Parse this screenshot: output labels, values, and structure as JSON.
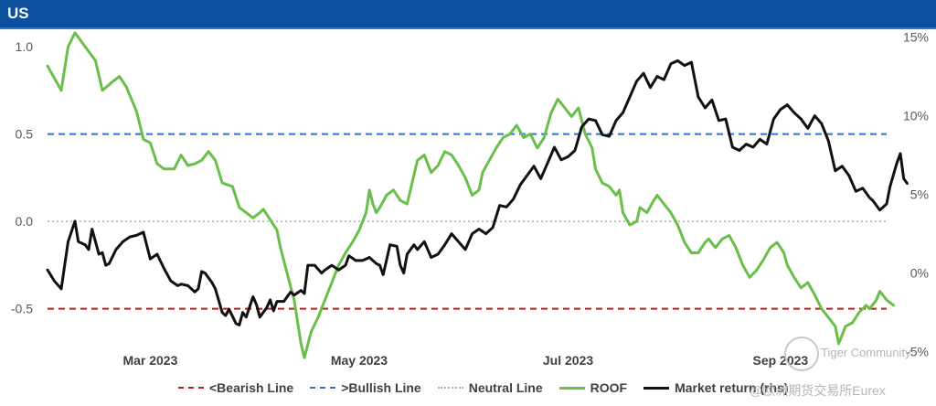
{
  "header": {
    "title": "US"
  },
  "chart_data": {
    "type": "line",
    "title": "US",
    "left_axis": {
      "min": -0.8,
      "max": 1.1,
      "ticks": [
        "1.0",
        "0.5",
        "0.0",
        "-0.5"
      ],
      "tick_values": [
        1.0,
        0.5,
        0.0,
        -0.5
      ]
    },
    "right_axis": {
      "min": -5.6,
      "max": 15.5,
      "ticks": [
        "15%",
        "10%",
        "5%",
        "0%",
        "-5%"
      ],
      "tick_values": [
        15,
        10,
        5,
        0,
        -5
      ]
    },
    "x_range": {
      "start_day": 0,
      "end_day": 245
    },
    "x_ticks": [
      {
        "label": "Mar 2023",
        "day": 30
      },
      {
        "label": "May 2023",
        "day": 91
      },
      {
        "label": "Jul 2023",
        "day": 152
      },
      {
        "label": "Sep 2023",
        "day": 214
      }
    ],
    "reference_lines": [
      {
        "name": "<Bearish Line",
        "value": -0.5,
        "color": "#b22222",
        "style": "dashed"
      },
      {
        "name": ">Bullish Line",
        "value": 0.5,
        "color": "#2e75c8",
        "style": "dashed"
      },
      {
        "name": "Neutral Line",
        "value": 0.0,
        "color": "#b0b0b0",
        "style": "dotted"
      }
    ],
    "series": [
      {
        "name": "ROOF",
        "axis": "left",
        "color": "#6abf4b",
        "points": [
          [
            0,
            0.89
          ],
          [
            4,
            0.75
          ],
          [
            6,
            1.0
          ],
          [
            8,
            1.08
          ],
          [
            11,
            1.0
          ],
          [
            14,
            0.92
          ],
          [
            16,
            0.75
          ],
          [
            19,
            0.8
          ],
          [
            21,
            0.83
          ],
          [
            23,
            0.77
          ],
          [
            26,
            0.63
          ],
          [
            28,
            0.47
          ],
          [
            30,
            0.45
          ],
          [
            32,
            0.33
          ],
          [
            34,
            0.3
          ],
          [
            37,
            0.3
          ],
          [
            39,
            0.38
          ],
          [
            41,
            0.32
          ],
          [
            43,
            0.33
          ],
          [
            45,
            0.35
          ],
          [
            47,
            0.4
          ],
          [
            49,
            0.35
          ],
          [
            51,
            0.22
          ],
          [
            54,
            0.2
          ],
          [
            56,
            0.08
          ],
          [
            58,
            0.05
          ],
          [
            60,
            0.02
          ],
          [
            62,
            0.05
          ],
          [
            63,
            0.07
          ],
          [
            65,
            0.01
          ],
          [
            67,
            -0.05
          ],
          [
            68,
            -0.15
          ],
          [
            70,
            -0.3
          ],
          [
            72,
            -0.45
          ],
          [
            74,
            -0.7
          ],
          [
            75,
            -0.78
          ],
          [
            77,
            -0.63
          ],
          [
            79,
            -0.55
          ],
          [
            81,
            -0.45
          ],
          [
            83,
            -0.35
          ],
          [
            85,
            -0.25
          ],
          [
            87,
            -0.18
          ],
          [
            89,
            -0.12
          ],
          [
            91,
            -0.05
          ],
          [
            93,
            0.05
          ],
          [
            94,
            0.18
          ],
          [
            95,
            0.1
          ],
          [
            96,
            0.05
          ],
          [
            97,
            0.08
          ],
          [
            99,
            0.15
          ],
          [
            101,
            0.18
          ],
          [
            103,
            0.12
          ],
          [
            105,
            0.1
          ],
          [
            108,
            0.35
          ],
          [
            110,
            0.38
          ],
          [
            112,
            0.28
          ],
          [
            114,
            0.32
          ],
          [
            116,
            0.4
          ],
          [
            118,
            0.38
          ],
          [
            120,
            0.32
          ],
          [
            122,
            0.25
          ],
          [
            124,
            0.15
          ],
          [
            126,
            0.18
          ],
          [
            127,
            0.28
          ],
          [
            129,
            0.35
          ],
          [
            131,
            0.42
          ],
          [
            133,
            0.48
          ],
          [
            135,
            0.5
          ],
          [
            137,
            0.55
          ],
          [
            139,
            0.48
          ],
          [
            141,
            0.5
          ],
          [
            143,
            0.42
          ],
          [
            145,
            0.48
          ],
          [
            147,
            0.62
          ],
          [
            149,
            0.7
          ],
          [
            151,
            0.65
          ],
          [
            153,
            0.6
          ],
          [
            155,
            0.65
          ],
          [
            157,
            0.5
          ],
          [
            159,
            0.42
          ],
          [
            160,
            0.3
          ],
          [
            162,
            0.22
          ],
          [
            164,
            0.2
          ],
          [
            166,
            0.15
          ],
          [
            167,
            0.18
          ],
          [
            168,
            0.05
          ],
          [
            170,
            -0.02
          ],
          [
            172,
            0.0
          ],
          [
            173,
            0.08
          ],
          [
            175,
            0.05
          ],
          [
            177,
            0.12
          ],
          [
            178,
            0.15
          ],
          [
            180,
            0.1
          ],
          [
            182,
            0.05
          ],
          [
            184,
            -0.02
          ],
          [
            186,
            -0.12
          ],
          [
            188,
            -0.18
          ],
          [
            190,
            -0.18
          ],
          [
            192,
            -0.12
          ],
          [
            193,
            -0.1
          ],
          [
            195,
            -0.15
          ],
          [
            197,
            -0.1
          ],
          [
            199,
            -0.08
          ],
          [
            201,
            -0.15
          ],
          [
            203,
            -0.25
          ],
          [
            205,
            -0.32
          ],
          [
            207,
            -0.28
          ],
          [
            209,
            -0.22
          ],
          [
            211,
            -0.15
          ],
          [
            213,
            -0.12
          ],
          [
            215,
            -0.18
          ],
          [
            216,
            -0.25
          ],
          [
            218,
            -0.32
          ],
          [
            220,
            -0.38
          ],
          [
            222,
            -0.35
          ],
          [
            224,
            -0.42
          ],
          [
            226,
            -0.5
          ],
          [
            228,
            -0.55
          ],
          [
            230,
            -0.6
          ],
          [
            231,
            -0.7
          ],
          [
            233,
            -0.6
          ],
          [
            235,
            -0.58
          ],
          [
            237,
            -0.52
          ],
          [
            239,
            -0.48
          ],
          [
            240,
            -0.5
          ],
          [
            242,
            -0.45
          ],
          [
            243,
            -0.4
          ],
          [
            245,
            -0.45
          ],
          [
            247,
            -0.48
          ]
        ]
      },
      {
        "name": "Market return (rhs)",
        "axis": "right",
        "color": "#111111",
        "points": [
          [
            0,
            0.2
          ],
          [
            2,
            -0.5
          ],
          [
            4,
            -1.0
          ],
          [
            6,
            2.0
          ],
          [
            8,
            3.3
          ],
          [
            9,
            2.0
          ],
          [
            11,
            1.8
          ],
          [
            12,
            1.5
          ],
          [
            13,
            2.8
          ],
          [
            15,
            1.2
          ],
          [
            16,
            1.3
          ],
          [
            17,
            0.5
          ],
          [
            18,
            0.6
          ],
          [
            20,
            1.5
          ],
          [
            22,
            2.0
          ],
          [
            24,
            2.3
          ],
          [
            26,
            2.4
          ],
          [
            28,
            2.6
          ],
          [
            30,
            0.9
          ],
          [
            32,
            1.2
          ],
          [
            34,
            0.3
          ],
          [
            36,
            -0.5
          ],
          [
            38,
            -0.8
          ],
          [
            39,
            -0.7
          ],
          [
            41,
            -0.8
          ],
          [
            43,
            -1.2
          ],
          [
            44,
            -1.0
          ],
          [
            45,
            0.1
          ],
          [
            46,
            0.0
          ],
          [
            48,
            -0.6
          ],
          [
            49,
            -1.0
          ],
          [
            51,
            -2.5
          ],
          [
            52,
            -2.7
          ],
          [
            53,
            -2.3
          ],
          [
            55,
            -3.2
          ],
          [
            56,
            -3.3
          ],
          [
            57,
            -2.5
          ],
          [
            58,
            -2.8
          ],
          [
            60,
            -1.5
          ],
          [
            61,
            -2.0
          ],
          [
            62,
            -2.8
          ],
          [
            64,
            -2.2
          ],
          [
            65,
            -1.7
          ],
          [
            66,
            -2.4
          ],
          [
            67,
            -1.8
          ],
          [
            69,
            -1.8
          ],
          [
            71,
            -1.2
          ],
          [
            72,
            -1.4
          ],
          [
            74,
            -1.1
          ],
          [
            75,
            -1.3
          ],
          [
            76,
            0.5
          ],
          [
            78,
            0.5
          ],
          [
            80,
            0.0
          ],
          [
            81,
            0.2
          ],
          [
            83,
            0.5
          ],
          [
            85,
            0.2
          ],
          [
            87,
            0.5
          ],
          [
            88,
            1.1
          ],
          [
            90,
            0.8
          ],
          [
            92,
            0.8
          ],
          [
            94,
            1.0
          ],
          [
            96,
            0.6
          ],
          [
            97,
            0.5
          ],
          [
            98,
            -0.1
          ],
          [
            100,
            1.8
          ],
          [
            102,
            1.7
          ],
          [
            103,
            0.5
          ],
          [
            104,
            0.0
          ],
          [
            105,
            1.2
          ],
          [
            107,
            1.8
          ],
          [
            108,
            1.5
          ],
          [
            110,
            2.0
          ],
          [
            112,
            1.0
          ],
          [
            114,
            1.2
          ],
          [
            116,
            1.8
          ],
          [
            118,
            2.5
          ],
          [
            120,
            2.0
          ],
          [
            122,
            1.5
          ],
          [
            124,
            2.5
          ],
          [
            126,
            2.8
          ],
          [
            128,
            2.5
          ],
          [
            130,
            2.9
          ],
          [
            132,
            4.3
          ],
          [
            134,
            4.2
          ],
          [
            136,
            4.7
          ],
          [
            138,
            5.6
          ],
          [
            140,
            6.2
          ],
          [
            142,
            6.8
          ],
          [
            144,
            6.0
          ],
          [
            146,
            7.0
          ],
          [
            148,
            8.0
          ],
          [
            150,
            7.2
          ],
          [
            152,
            7.4
          ],
          [
            154,
            7.8
          ],
          [
            156,
            9.3
          ],
          [
            158,
            9.8
          ],
          [
            160,
            9.7
          ],
          [
            162,
            8.8
          ],
          [
            164,
            8.7
          ],
          [
            166,
            9.7
          ],
          [
            168,
            10.2
          ],
          [
            170,
            11.2
          ],
          [
            172,
            12.2
          ],
          [
            174,
            12.7
          ],
          [
            176,
            11.8
          ],
          [
            178,
            12.5
          ],
          [
            180,
            12.3
          ],
          [
            182,
            13.3
          ],
          [
            184,
            13.5
          ],
          [
            186,
            13.2
          ],
          [
            188,
            13.4
          ],
          [
            190,
            11.2
          ],
          [
            192,
            10.5
          ],
          [
            194,
            11.0
          ],
          [
            196,
            9.7
          ],
          [
            198,
            9.8
          ],
          [
            200,
            8.0
          ],
          [
            202,
            7.8
          ],
          [
            204,
            8.2
          ],
          [
            206,
            8.0
          ],
          [
            208,
            8.5
          ],
          [
            210,
            8.2
          ],
          [
            212,
            9.8
          ],
          [
            214,
            10.4
          ],
          [
            216,
            10.7
          ],
          [
            218,
            10.2
          ],
          [
            220,
            9.8
          ],
          [
            222,
            9.2
          ],
          [
            224,
            10.0
          ],
          [
            226,
            9.5
          ],
          [
            228,
            8.4
          ],
          [
            230,
            6.5
          ],
          [
            232,
            6.8
          ],
          [
            234,
            6.2
          ],
          [
            236,
            5.2
          ],
          [
            238,
            5.4
          ],
          [
            240,
            4.8
          ],
          [
            241,
            4.6
          ],
          [
            243,
            4.0
          ],
          [
            245,
            4.4
          ],
          [
            246,
            5.5
          ],
          [
            248,
            7.0
          ],
          [
            249,
            7.6
          ],
          [
            250,
            6.0
          ],
          [
            251,
            5.7
          ]
        ]
      }
    ],
    "legend": [
      {
        "label": "<Bearish Line",
        "style": "dash-red"
      },
      {
        "label": ">Bullish Line",
        "style": "dash-blue"
      },
      {
        "label": "Neutral Line",
        "style": "dot-gray"
      },
      {
        "label": "ROOF",
        "style": "green"
      },
      {
        "label": "Market return (rhs)",
        "style": "black"
      }
    ]
  },
  "watermark": {
    "community": "Tiger Community",
    "source": "@欧洲期货交易所Eurex"
  }
}
